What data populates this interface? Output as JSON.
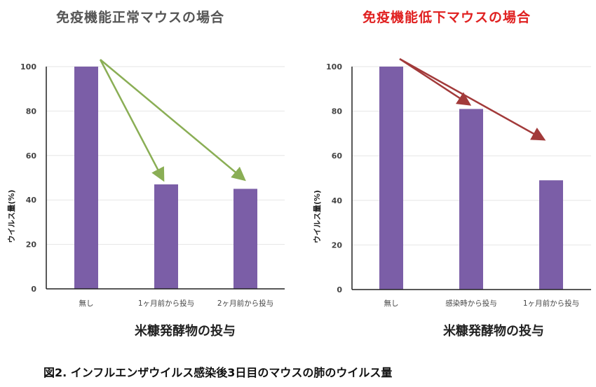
{
  "caption": "図2. インフルエンザウイルス感染後3日目のマウスの肺のウイルス量",
  "colors": {
    "bar": "#7b5ea7",
    "green_arrow": "#8aae55",
    "red_arrow": "#a23a3a",
    "title_left": "#555555",
    "title_right": "#e02020"
  },
  "chart_data": [
    {
      "type": "bar",
      "title": "免疫機能正常マウスの場合",
      "categories": [
        "無し",
        "1ヶ月前から投与",
        "2ヶ月前から投与"
      ],
      "values": [
        100,
        47,
        45
      ],
      "xlabel": "米糠発酵物の投与",
      "ylabel": "ウイルス量(%)",
      "ylim": [
        0,
        100
      ],
      "yticks": [
        "0",
        "20",
        "40",
        "60",
        "80",
        "100"
      ],
      "grid": true
    },
    {
      "type": "bar",
      "title": "免疫機能低下マウスの場合",
      "categories": [
        "無し",
        "感染時から投与",
        "1ヶ月前から投与"
      ],
      "values": [
        100,
        81,
        49
      ],
      "xlabel": "米糠発酵物の投与",
      "ylabel": "ウイルス量(%)",
      "ylim": [
        0,
        100
      ],
      "yticks": [
        "0",
        "20",
        "40",
        "60",
        "80",
        "100"
      ],
      "grid": true
    }
  ]
}
